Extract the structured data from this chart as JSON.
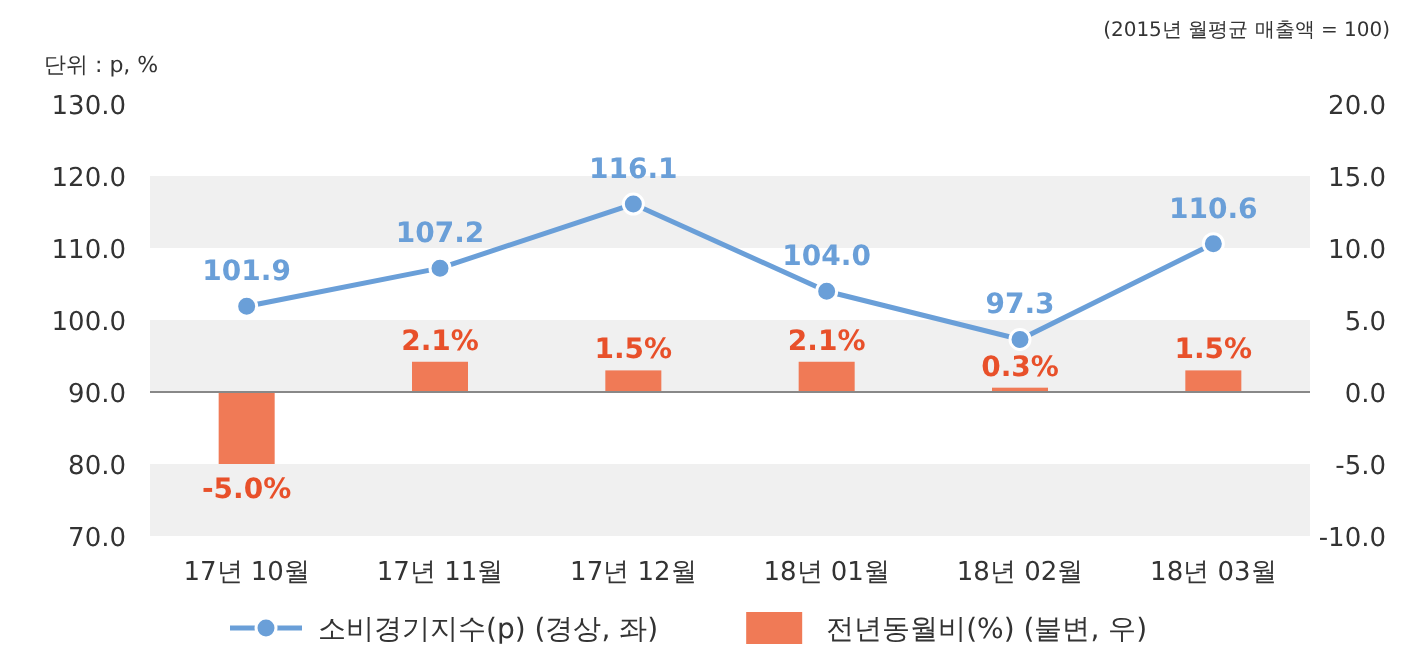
{
  "chart_data": {
    "type": "line",
    "subtitle": "(2015년 월평균 매출액 = 100)",
    "ylabel": "단위 : p, %",
    "categories": [
      "17년 10월",
      "17년 11월",
      "17년 12월",
      "18년 01월",
      "18년 02월",
      "18년 03월"
    ],
    "series": [
      {
        "name": "소비경기지수(p) (경상, 좌)",
        "color": "#6a9fd8",
        "marker": "circle",
        "values": [
          101.9,
          107.2,
          116.1,
          104.0,
          97.3,
          110.6
        ],
        "value_labels": [
          "101.9",
          "107.2",
          "116.1",
          "104.0",
          "97.3",
          "110.6"
        ]
      },
      {
        "name": "전년동월비(%) (불변, 우)",
        "type": "bar",
        "axis": "y2",
        "color": "#f07a56",
        "values": [
          -5.0,
          2.1,
          1.5,
          2.1,
          0.3,
          1.5
        ],
        "value_labels": [
          "-5.0%",
          "2.1%",
          "1.5%",
          "2.1%",
          "0.3%",
          "1.5%"
        ]
      }
    ],
    "ylim": [
      70,
      130
    ],
    "yticks": [
      {
        "value": 70,
        "label": "70.0"
      },
      {
        "value": 80,
        "label": "80.0"
      },
      {
        "value": 90,
        "label": "90.0"
      },
      {
        "value": 100,
        "label": "100.0"
      },
      {
        "value": 110,
        "label": "110.0"
      },
      {
        "value": 120,
        "label": "120.0"
      },
      {
        "value": 130,
        "label": "130.0"
      }
    ],
    "y2lim": [
      -10,
      20
    ],
    "y2ticks": [
      {
        "value": -10,
        "label": "-10.0"
      },
      {
        "value": -5,
        "label": "-5.0"
      },
      {
        "value": 0,
        "label": "0.0"
      },
      {
        "value": 5,
        "label": "5.0"
      },
      {
        "value": 10,
        "label": "10.0"
      },
      {
        "value": 15,
        "label": "15.0"
      },
      {
        "value": 20,
        "label": "20.0"
      }
    ],
    "grid": "y",
    "legend": "bottom"
  }
}
